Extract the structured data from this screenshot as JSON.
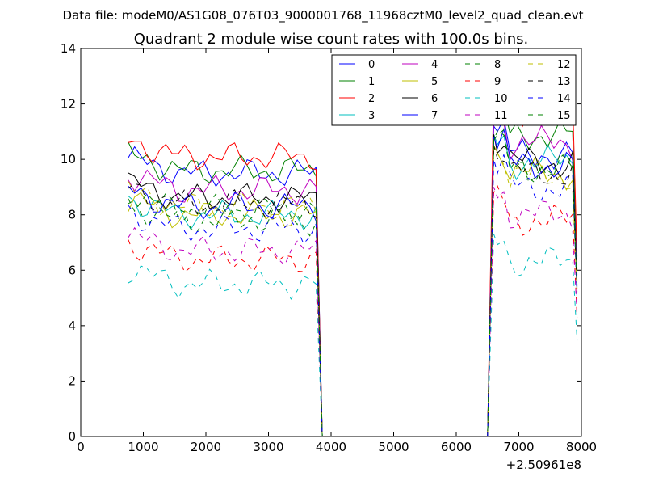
{
  "chart_data": {
    "type": "line",
    "suptitle": "Data file: modeM0/AS1G08_076T03_9000001768_11968cztM0_level2_quad_clean.evt",
    "title": "Quadrant 2 module wise count rates with 100.0s bins.",
    "xlabel": "",
    "ylabel": "",
    "x_offset_label": "+2.50961e8",
    "xlim": [
      0,
      8000
    ],
    "ylim": [
      0,
      14
    ],
    "xticks": [
      0,
      1000,
      2000,
      3000,
      4000,
      5000,
      6000,
      7000,
      8000
    ],
    "xtick_labels": [
      "0",
      "1000",
      "2000",
      "3000",
      "4000",
      "5000",
      "6000",
      "7000",
      "8000"
    ],
    "yticks": [
      0,
      2,
      4,
      6,
      8,
      10,
      12,
      14
    ],
    "ytick_labels": [
      "0",
      "2",
      "4",
      "6",
      "8",
      "10",
      "12",
      "14"
    ],
    "legend_position": "upper-right",
    "gap": {
      "start": 3900,
      "end": 6500
    },
    "segment1": {
      "x_start": 760,
      "x_end": 3760,
      "step": 100
    },
    "segment2": {
      "x_start": 6660,
      "x_end": 7860,
      "step": 100
    },
    "series": [
      {
        "name": "0",
        "color": "#0000ff",
        "dash": "solid",
        "seg1_level": 9.5,
        "seg2_level": 10.2
      },
      {
        "name": "1",
        "color": "#008000",
        "dash": "solid",
        "seg1_level": 9.6,
        "seg2_level": 10.9
      },
      {
        "name": "2",
        "color": "#ff0000",
        "dash": "solid",
        "seg1_level": 10.1,
        "seg2_level": 11.8
      },
      {
        "name": "3",
        "color": "#00bfbf",
        "dash": "solid",
        "seg1_level": 8.0,
        "seg2_level": 9.9
      },
      {
        "name": "4",
        "color": "#bf00bf",
        "dash": "solid",
        "seg1_level": 8.9,
        "seg2_level": 10.6
      },
      {
        "name": "5",
        "color": "#bfbf00",
        "dash": "solid",
        "seg1_level": 8.0,
        "seg2_level": 9.5
      },
      {
        "name": "6",
        "color": "#000000",
        "dash": "solid",
        "seg1_level": 8.6,
        "seg2_level": 9.9
      },
      {
        "name": "7",
        "color": "#0000ff",
        "dash": "solid",
        "seg1_level": 8.3,
        "seg2_level": 9.8
      },
      {
        "name": "8",
        "color": "#008000",
        "dash": "dashed",
        "seg1_level": 7.8,
        "seg2_level": 9.7
      },
      {
        "name": "9",
        "color": "#ff0000",
        "dash": "dashed",
        "seg1_level": 6.4,
        "seg2_level": 7.8
      },
      {
        "name": "10",
        "color": "#00bfbf",
        "dash": "dashed",
        "seg1_level": 5.5,
        "seg2_level": 6.3
      },
      {
        "name": "11",
        "color": "#bf00bf",
        "dash": "dashed",
        "seg1_level": 6.7,
        "seg2_level": 8.0
      },
      {
        "name": "12",
        "color": "#bfbf00",
        "dash": "dashed",
        "seg1_level": 8.3,
        "seg2_level": 9.4
      },
      {
        "name": "13",
        "color": "#000000",
        "dash": "dashed",
        "seg1_level": 8.4,
        "seg2_level": 9.5
      },
      {
        "name": "14",
        "color": "#0000ff",
        "dash": "dashed",
        "seg1_level": 7.5,
        "seg2_level": 9.0
      },
      {
        "name": "15",
        "color": "#008000",
        "dash": "dashed",
        "seg1_level": 8.2,
        "seg2_level": 9.7
      }
    ]
  }
}
